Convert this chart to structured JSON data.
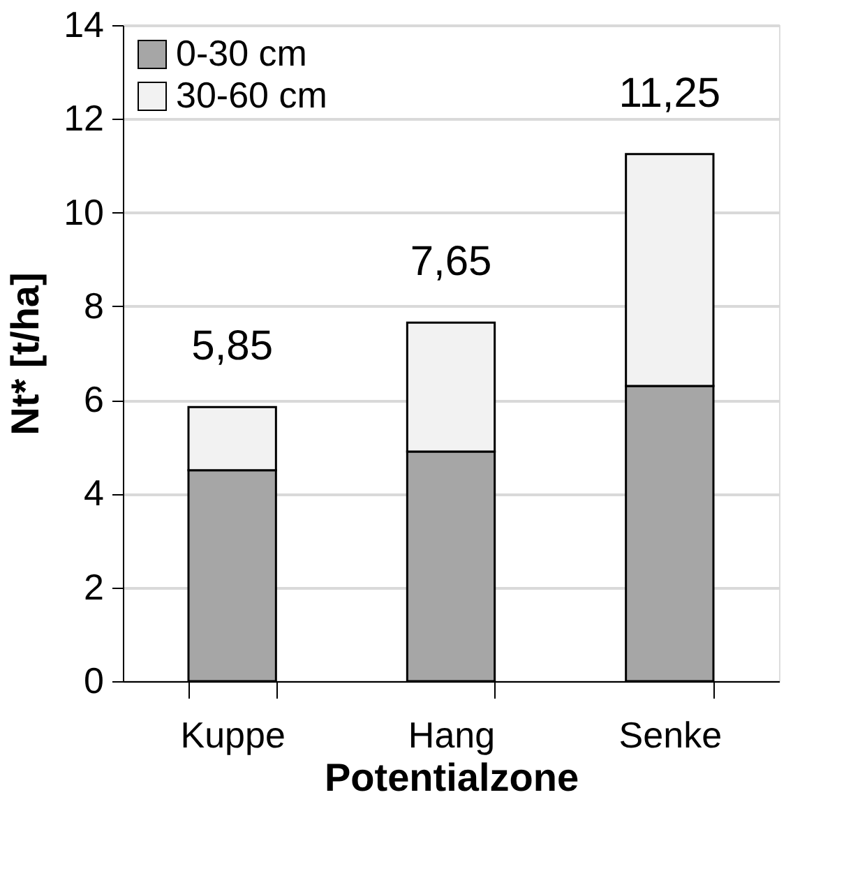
{
  "chart_data": {
    "type": "bar",
    "stacked": true,
    "xlabel": "Potentialzone",
    "ylabel": "Nt* [t/ha]",
    "categories": [
      "Kuppe",
      "Hang",
      "Senke"
    ],
    "series": [
      {
        "name": "0-30 cm",
        "color": "#a6a6a6",
        "values": [
          4.5,
          4.9,
          6.3
        ]
      },
      {
        "name": "30-60 cm",
        "color": "#f2f2f2",
        "values": [
          1.35,
          2.75,
          4.95
        ]
      }
    ],
    "totals": [
      "5,85",
      "7,65",
      "11,25"
    ],
    "ylim": [
      0,
      14
    ],
    "yticks": [
      0,
      2,
      4,
      6,
      8,
      10,
      12,
      14
    ],
    "grid": "y",
    "legend": "top left"
  }
}
